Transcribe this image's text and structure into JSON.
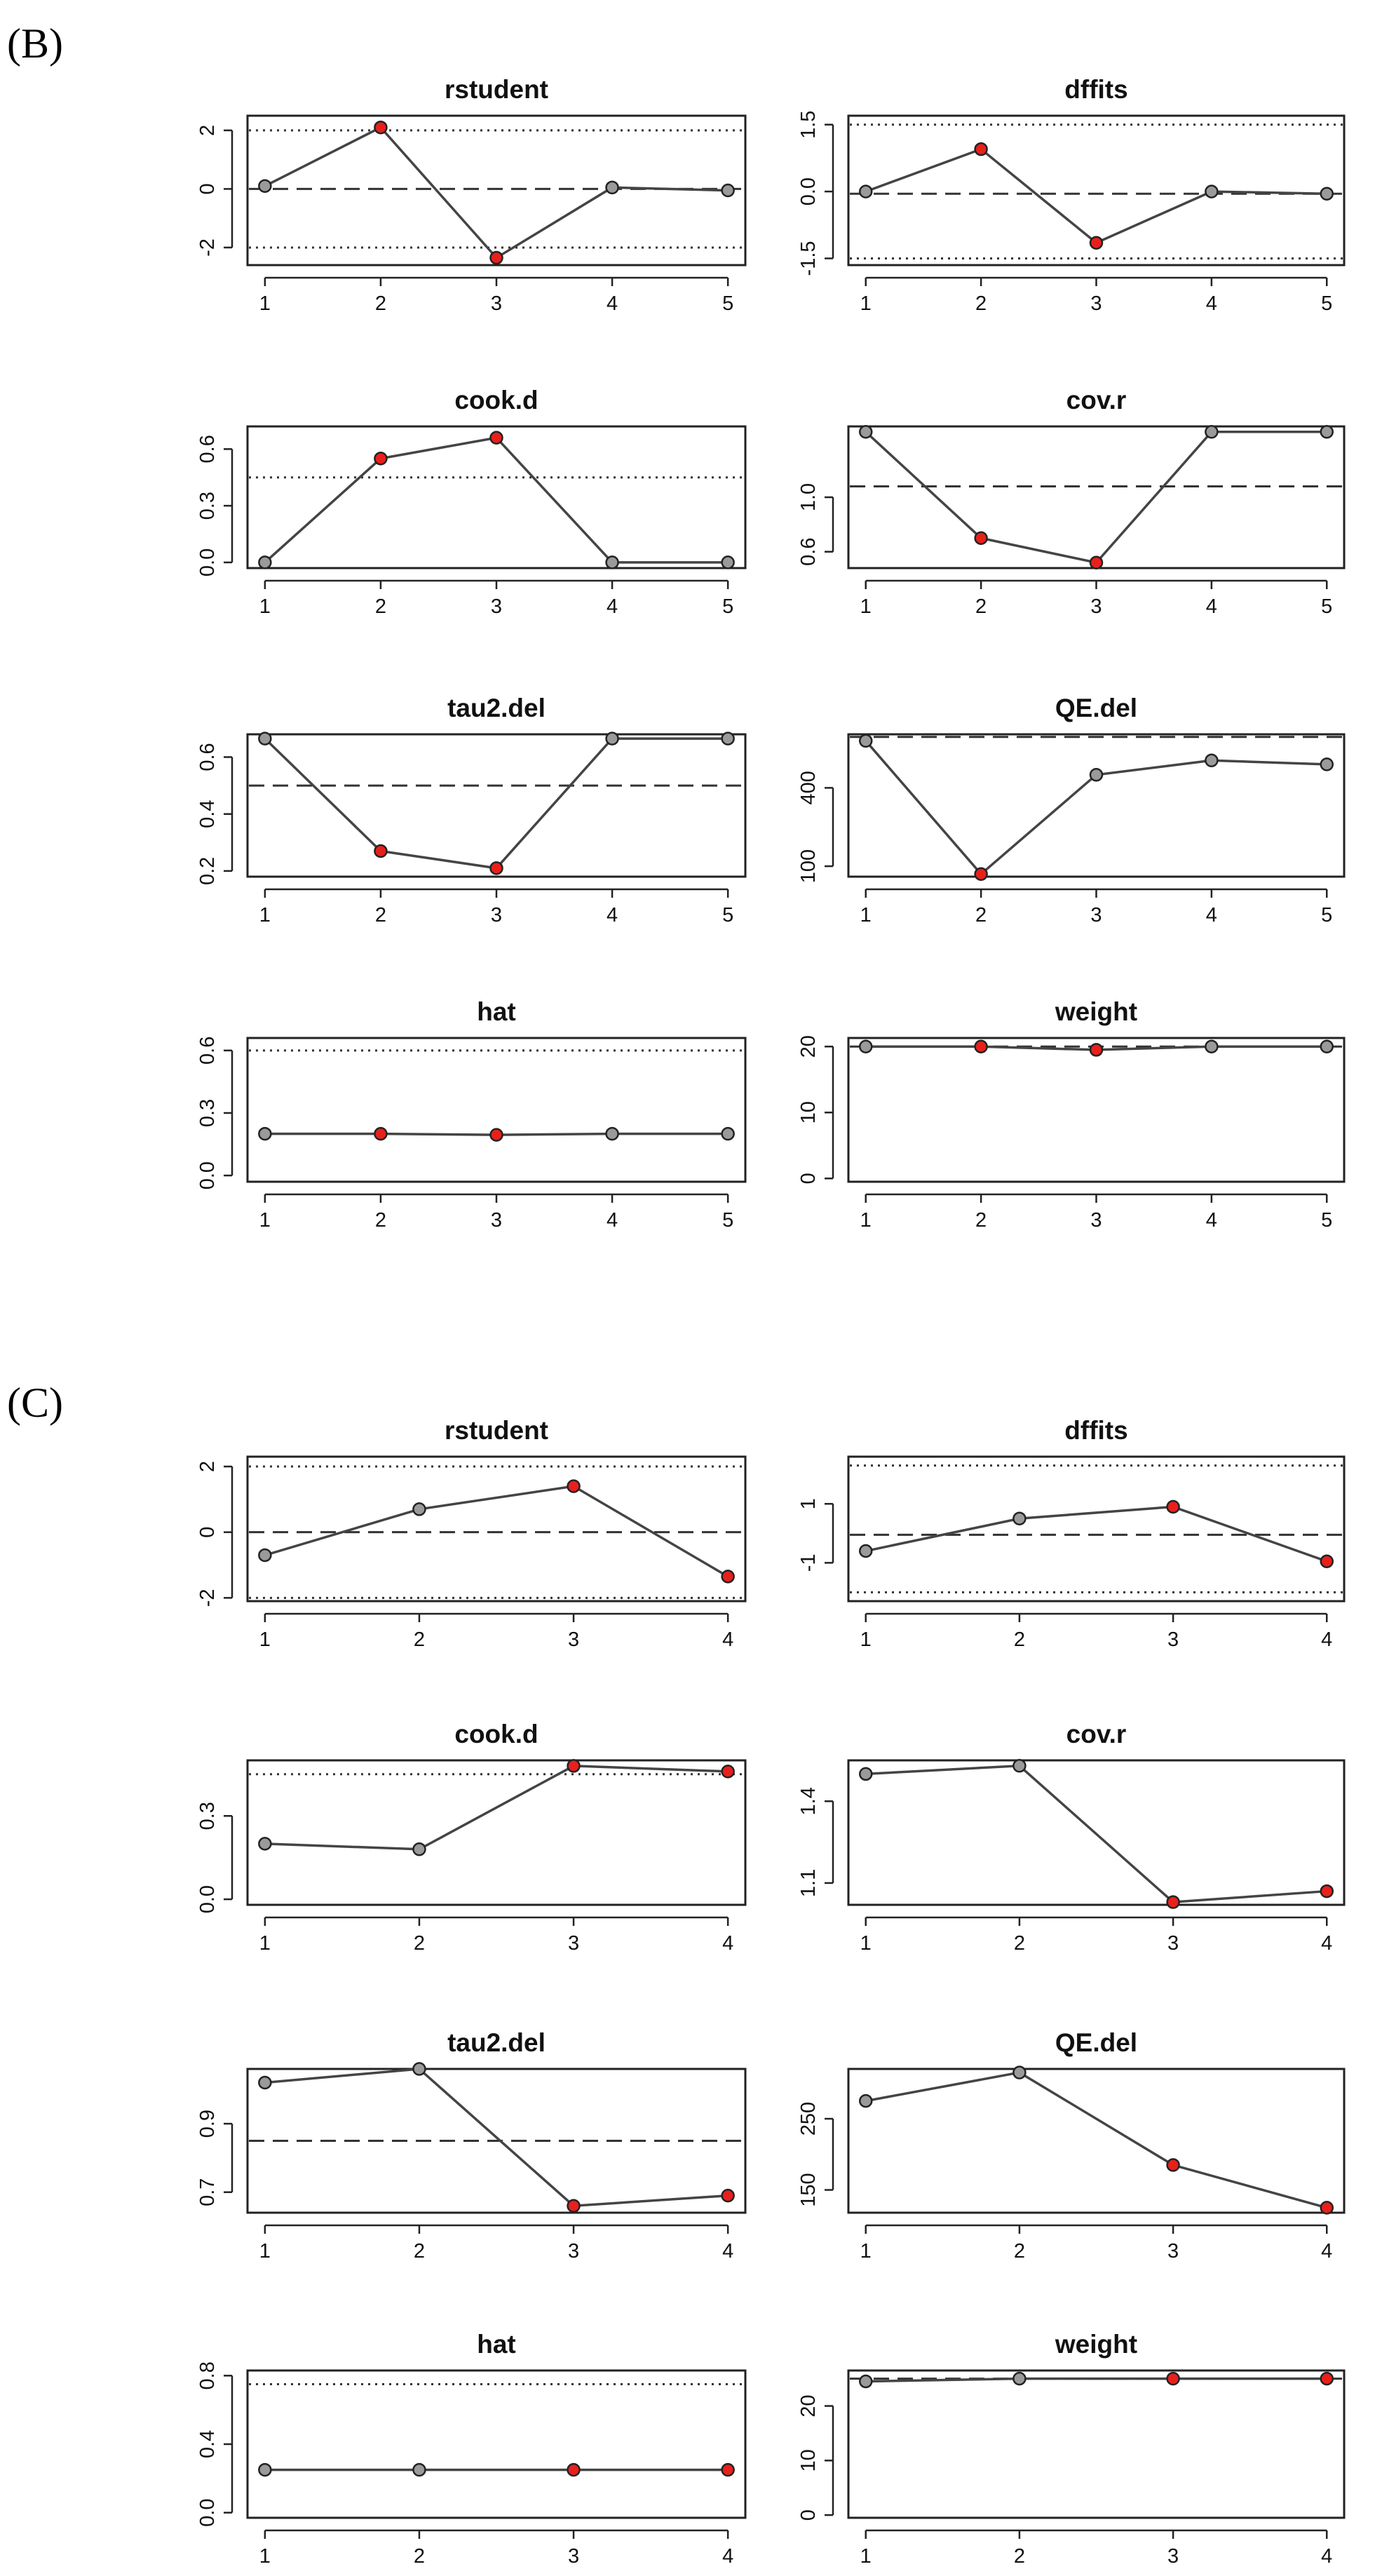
{
  "panels": [
    {
      "label": "(B)"
    },
    {
      "label": "(C)"
    }
  ],
  "colors": {
    "normal": "#9a9a9a",
    "influential": "#e8201c",
    "outline": "#222222"
  },
  "chart_data": [
    {
      "type": "line",
      "panel": "(B)",
      "title": "rstudent",
      "x": [
        1,
        2,
        3,
        4,
        5
      ],
      "y": [
        0.1,
        2.1,
        -2.35,
        0.05,
        -0.05
      ],
      "highlight": [
        2,
        3
      ],
      "ylim": [
        -2.6,
        2.5
      ],
      "yticks": [
        -2,
        0,
        2
      ],
      "ytick_labels": [
        "-2",
        "0",
        "2"
      ],
      "reference": [
        {
          "y": 2,
          "style": "dotted"
        },
        {
          "y": -2,
          "style": "dotted"
        },
        {
          "y": 0,
          "style": "dashed"
        }
      ]
    },
    {
      "type": "line",
      "panel": "(B)",
      "title": "dffits",
      "x": [
        1,
        2,
        3,
        4,
        5
      ],
      "y": [
        0.0,
        0.95,
        -1.15,
        0.0,
        -0.05
      ],
      "highlight": [
        2,
        3
      ],
      "ylim": [
        -1.65,
        1.7
      ],
      "yticks": [
        -1.5,
        0,
        1.5
      ],
      "ytick_labels": [
        "-1.5",
        "0.0",
        "1.5"
      ],
      "reference": [
        {
          "y": 1.5,
          "style": "dotted"
        },
        {
          "y": -1.5,
          "style": "dotted"
        },
        {
          "y": -0.05,
          "style": "dashed"
        }
      ]
    },
    {
      "type": "line",
      "panel": "(B)",
      "title": "cook.d",
      "x": [
        1,
        2,
        3,
        4,
        5
      ],
      "y": [
        0.0,
        0.55,
        0.66,
        0.0,
        0.0
      ],
      "highlight": [
        2,
        3
      ],
      "ylim": [
        -0.03,
        0.72
      ],
      "yticks": [
        0,
        0.3,
        0.6
      ],
      "ytick_labels": [
        "0.0",
        "0.3",
        "0.6"
      ],
      "reference": [
        {
          "y": 0.45,
          "style": "dotted"
        }
      ]
    },
    {
      "type": "line",
      "panel": "(B)",
      "title": "cov.r",
      "x": [
        1,
        2,
        3,
        4,
        5
      ],
      "y": [
        1.48,
        0.7,
        0.52,
        1.48,
        1.48
      ],
      "highlight": [
        2,
        3
      ],
      "ylim": [
        0.48,
        1.52
      ],
      "yticks": [
        0.6,
        1.0
      ],
      "ytick_labels": [
        "0.6",
        "1.0"
      ],
      "reference": [
        {
          "y": 1.08,
          "style": "dashed"
        }
      ]
    },
    {
      "type": "line",
      "panel": "(B)",
      "title": "tau2.del",
      "x": [
        1,
        2,
        3,
        4,
        5
      ],
      "y": [
        0.665,
        0.27,
        0.21,
        0.665,
        0.665
      ],
      "highlight": [
        2,
        3
      ],
      "ylim": [
        0.18,
        0.68
      ],
      "yticks": [
        0.2,
        0.4,
        0.6
      ],
      "ytick_labels": [
        "0.2",
        "0.4",
        "0.6"
      ],
      "reference": [
        {
          "y": 0.5,
          "style": "dashed"
        }
      ]
    },
    {
      "type": "line",
      "panel": "(B)",
      "title": "QE.del",
      "x": [
        1,
        2,
        3,
        4,
        5
      ],
      "y": [
        580,
        70,
        450,
        505,
        490
      ],
      "highlight": [
        2
      ],
      "ylim": [
        60,
        605
      ],
      "yticks": [
        100,
        400
      ],
      "ytick_labels": [
        "100",
        "400"
      ],
      "reference": [
        {
          "y": 595,
          "style": "dashed"
        }
      ]
    },
    {
      "type": "line",
      "panel": "(B)",
      "title": "hat",
      "x": [
        1,
        2,
        3,
        4,
        5
      ],
      "y": [
        0.2,
        0.2,
        0.195,
        0.2,
        0.2
      ],
      "highlight": [
        2,
        3
      ],
      "ylim": [
        -0.03,
        0.66
      ],
      "yticks": [
        0,
        0.3,
        0.6
      ],
      "ytick_labels": [
        "0.0",
        "0.3",
        "0.6"
      ],
      "reference": [
        {
          "y": 0.6,
          "style": "dotted"
        }
      ]
    },
    {
      "type": "line",
      "panel": "(B)",
      "title": "weight",
      "x": [
        1,
        2,
        3,
        4,
        5
      ],
      "y": [
        20,
        20,
        19.5,
        20,
        20
      ],
      "highlight": [
        2,
        3
      ],
      "ylim": [
        -0.5,
        21.3
      ],
      "yticks": [
        0,
        10,
        20
      ],
      "ytick_labels": [
        "0",
        "10",
        "20"
      ],
      "reference": [
        {
          "y": 20,
          "style": "dashed"
        }
      ]
    },
    {
      "type": "line",
      "panel": "(C)",
      "title": "rstudent",
      "x": [
        1,
        2,
        3,
        4
      ],
      "y": [
        -0.7,
        0.7,
        1.4,
        -1.35
      ],
      "highlight": [
        3,
        4
      ],
      "ylim": [
        -2.1,
        2.3
      ],
      "yticks": [
        -2,
        0,
        2
      ],
      "ytick_labels": [
        "-2",
        "0",
        "2"
      ],
      "reference": [
        {
          "y": 2,
          "style": "dotted"
        },
        {
          "y": -2,
          "style": "dotted"
        },
        {
          "y": 0,
          "style": "dashed"
        }
      ]
    },
    {
      "type": "line",
      "panel": "(C)",
      "title": "dffits",
      "x": [
        1,
        2,
        3,
        4
      ],
      "y": [
        -0.6,
        0.5,
        0.9,
        -0.95
      ],
      "highlight": [
        3,
        4
      ],
      "ylim": [
        -2.3,
        2.6
      ],
      "yticks": [
        -1,
        1
      ],
      "ytick_labels": [
        "-1",
        "1"
      ],
      "reference": [
        {
          "y": 2.3,
          "style": "dotted"
        },
        {
          "y": -2.0,
          "style": "dotted"
        },
        {
          "y": -0.05,
          "style": "dashed"
        }
      ]
    },
    {
      "type": "line",
      "panel": "(C)",
      "title": "cook.d",
      "x": [
        1,
        2,
        3,
        4
      ],
      "y": [
        0.2,
        0.18,
        0.48,
        0.46
      ],
      "highlight": [
        3,
        4
      ],
      "ylim": [
        -0.02,
        0.5
      ],
      "yticks": [
        0,
        0.3
      ],
      "ytick_labels": [
        "0.0",
        "0.3"
      ],
      "reference": [
        {
          "y": 0.45,
          "style": "dotted"
        }
      ]
    },
    {
      "type": "line",
      "panel": "(C)",
      "title": "cov.r",
      "x": [
        1,
        2,
        3,
        4
      ],
      "y": [
        1.5,
        1.53,
        1.03,
        1.07
      ],
      "highlight": [
        3,
        4
      ],
      "ylim": [
        1.02,
        1.55
      ],
      "yticks": [
        1.1,
        1.4
      ],
      "ytick_labels": [
        "1.1",
        "1.4"
      ],
      "reference": []
    },
    {
      "type": "line",
      "panel": "(C)",
      "title": "tau2.del",
      "x": [
        1,
        2,
        3,
        4
      ],
      "y": [
        1.02,
        1.06,
        0.66,
        0.69
      ],
      "highlight": [
        3,
        4
      ],
      "ylim": [
        0.64,
        1.06
      ],
      "yticks": [
        0.7,
        0.9
      ],
      "ytick_labels": [
        "0.7",
        "0.9"
      ],
      "reference": [
        {
          "y": 0.85,
          "style": "dashed"
        }
      ]
    },
    {
      "type": "line",
      "panel": "(C)",
      "title": "QE.del",
      "x": [
        1,
        2,
        3,
        4
      ],
      "y": [
        275,
        315,
        185,
        125
      ],
      "highlight": [
        3,
        4
      ],
      "ylim": [
        118,
        320
      ],
      "yticks": [
        150,
        250
      ],
      "ytick_labels": [
        "150",
        "250"
      ],
      "reference": []
    },
    {
      "type": "line",
      "panel": "(C)",
      "title": "hat",
      "x": [
        1,
        2,
        3,
        4
      ],
      "y": [
        0.25,
        0.25,
        0.25,
        0.25
      ],
      "highlight": [
        3,
        4
      ],
      "ylim": [
        -0.03,
        0.83
      ],
      "yticks": [
        0,
        0.4,
        0.8
      ],
      "ytick_labels": [
        "0.0",
        "0.4",
        "0.8"
      ],
      "reference": [
        {
          "y": 0.75,
          "style": "dotted"
        }
      ]
    },
    {
      "type": "line",
      "panel": "(C)",
      "title": "weight",
      "x": [
        1,
        2,
        3,
        4
      ],
      "y": [
        24.5,
        25,
        25,
        25
      ],
      "highlight": [
        3,
        4
      ],
      "ylim": [
        -0.5,
        26.5
      ],
      "yticks": [
        0,
        10,
        20
      ],
      "ytick_labels": [
        "0",
        "10",
        "20"
      ],
      "reference": [
        {
          "y": 25,
          "style": "dashed"
        }
      ]
    }
  ]
}
